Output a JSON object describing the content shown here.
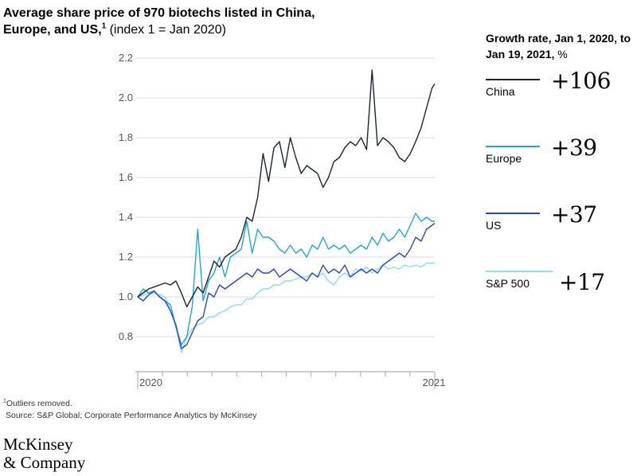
{
  "header": {
    "title_bold": "Average share price of 970 biotechs listed in China, Europe, and US,",
    "title_sup": "1",
    "title_rest": "(index 1 = Jan 2020)"
  },
  "legend": {
    "heading_bold": "Growth rate, Jan 1, 2020, to Jan 19, 2021,",
    "heading_unit": "%",
    "items": [
      {
        "name": "China",
        "value": "+106",
        "color": "#1c2433"
      },
      {
        "name": "Europe",
        "value": "+39",
        "color": "#1fa6d6"
      },
      {
        "name": "US",
        "value": "+37",
        "color": "#2a47c2"
      },
      {
        "name": "S&P 500",
        "value": "+17",
        "color": "#8fdcf5"
      }
    ]
  },
  "footnote": {
    "sup": "1",
    "outliers": "Outliers removed.",
    "source": "Source: S&P Global; Corporate Performance Analytics by McKinsey"
  },
  "brand": {
    "line1": "McKinsey",
    "line2": "& Company"
  },
  "chart_data": {
    "type": "line",
    "title": "Average share price of 970 biotechs listed in China, Europe, and US, (index 1 = Jan 2020)",
    "xlabel": "",
    "ylabel": "",
    "ylim": [
      0.7,
      2.2
    ],
    "yticks": [
      0.8,
      1.0,
      1.2,
      1.4,
      1.6,
      1.8,
      2.0,
      2.2
    ],
    "ytick_labels": [
      "0.8",
      "1.0",
      "1.2",
      "1.4",
      "1.6",
      "1.8",
      "2.0",
      "2.2"
    ],
    "x_range_weeks": [
      0,
      54.5
    ],
    "x_ticks": [
      {
        "week": 0,
        "label": "2020"
      },
      {
        "week": 54.5,
        "label": "2021"
      }
    ],
    "grid": true,
    "series": [
      {
        "name": "China",
        "color": "#1c2433",
        "x": [
          0,
          1,
          2,
          3,
          4,
          5,
          6,
          7,
          8,
          9,
          10,
          11,
          12,
          13,
          14,
          15,
          16,
          17,
          18,
          19,
          20,
          21,
          22,
          23,
          24,
          25,
          26,
          27,
          28,
          29,
          30,
          31,
          32,
          33,
          34,
          35,
          36,
          37,
          38,
          39,
          40,
          41,
          42,
          43,
          44,
          45,
          46,
          47,
          48,
          49,
          50,
          51,
          52,
          53,
          54,
          54.5
        ],
        "values": [
          1.0,
          1.02,
          1.04,
          1.05,
          1.06,
          1.07,
          1.06,
          1.08,
          1.02,
          0.95,
          1.0,
          1.05,
          1.02,
          1.1,
          1.18,
          1.15,
          1.2,
          1.22,
          1.24,
          1.3,
          1.4,
          1.38,
          1.5,
          1.72,
          1.58,
          1.75,
          1.78,
          1.65,
          1.8,
          1.7,
          1.62,
          1.66,
          1.64,
          1.62,
          1.55,
          1.6,
          1.68,
          1.7,
          1.75,
          1.78,
          1.76,
          1.8,
          1.74,
          2.14,
          1.76,
          1.8,
          1.78,
          1.75,
          1.7,
          1.68,
          1.72,
          1.78,
          1.85,
          1.95,
          2.05,
          2.07
        ]
      },
      {
        "name": "Europe",
        "color": "#1fa6d6",
        "x": [
          0,
          1,
          2,
          3,
          4,
          5,
          6,
          7,
          8,
          9,
          10,
          11,
          12,
          13,
          14,
          15,
          16,
          17,
          18,
          19,
          20,
          21,
          22,
          23,
          24,
          25,
          26,
          27,
          28,
          29,
          30,
          31,
          32,
          33,
          34,
          35,
          36,
          37,
          38,
          39,
          40,
          41,
          42,
          43,
          44,
          45,
          46,
          47,
          48,
          49,
          50,
          51,
          52,
          53,
          54,
          54.5
        ],
        "values": [
          1.0,
          1.04,
          1.02,
          1.03,
          1.0,
          0.98,
          0.96,
          0.85,
          0.76,
          0.8,
          0.95,
          1.34,
          0.98,
          1.08,
          1.12,
          1.2,
          1.1,
          1.2,
          1.22,
          1.24,
          1.38,
          1.22,
          1.34,
          1.3,
          1.3,
          1.28,
          1.24,
          1.22,
          1.26,
          1.22,
          1.24,
          1.2,
          1.26,
          1.24,
          1.3,
          1.24,
          1.26,
          1.24,
          1.26,
          1.22,
          1.24,
          1.26,
          1.24,
          1.3,
          1.26,
          1.32,
          1.28,
          1.3,
          1.34,
          1.3,
          1.36,
          1.42,
          1.38,
          1.4,
          1.38,
          1.38
        ]
      },
      {
        "name": "US",
        "color": "#2a47c2",
        "x": [
          0,
          1,
          2,
          3,
          4,
          5,
          6,
          7,
          8,
          9,
          10,
          11,
          12,
          13,
          14,
          15,
          16,
          17,
          18,
          19,
          20,
          21,
          22,
          23,
          24,
          25,
          26,
          27,
          28,
          29,
          30,
          31,
          32,
          33,
          34,
          35,
          36,
          37,
          38,
          39,
          40,
          41,
          42,
          43,
          44,
          45,
          46,
          47,
          48,
          49,
          50,
          51,
          52,
          53,
          54,
          54.5
        ],
        "values": [
          1.0,
          0.98,
          1.01,
          1.03,
          1.0,
          0.98,
          0.93,
          0.86,
          0.74,
          0.76,
          0.82,
          0.88,
          0.9,
          1.02,
          1.0,
          1.06,
          1.04,
          1.06,
          1.08,
          1.1,
          1.12,
          1.1,
          1.14,
          1.12,
          1.12,
          1.14,
          1.1,
          1.12,
          1.14,
          1.12,
          1.1,
          1.08,
          1.12,
          1.1,
          1.16,
          1.12,
          1.14,
          1.12,
          1.16,
          1.1,
          1.12,
          1.14,
          1.12,
          1.14,
          1.12,
          1.16,
          1.18,
          1.2,
          1.22,
          1.2,
          1.24,
          1.3,
          1.28,
          1.34,
          1.36,
          1.37
        ]
      },
      {
        "name": "S&P 500",
        "color": "#8fdcf5",
        "x": [
          0,
          1,
          2,
          3,
          4,
          5,
          6,
          7,
          8,
          9,
          10,
          11,
          12,
          13,
          14,
          15,
          16,
          17,
          18,
          19,
          20,
          21,
          22,
          23,
          24,
          25,
          26,
          27,
          28,
          29,
          30,
          31,
          32,
          33,
          34,
          35,
          36,
          37,
          38,
          39,
          40,
          41,
          42,
          43,
          44,
          45,
          46,
          47,
          48,
          49,
          50,
          51,
          52,
          53,
          54,
          54.5
        ],
        "values": [
          1.0,
          1.01,
          1.02,
          1.02,
          1.01,
          1.0,
          0.93,
          0.85,
          0.72,
          0.8,
          0.84,
          0.86,
          0.87,
          0.9,
          0.9,
          0.92,
          0.93,
          0.95,
          0.96,
          0.96,
          0.99,
          0.99,
          1.02,
          1.04,
          1.04,
          1.06,
          1.06,
          1.08,
          1.08,
          1.09,
          1.1,
          1.1,
          1.12,
          1.1,
          1.12,
          1.08,
          1.06,
          1.1,
          1.12,
          1.1,
          1.14,
          1.13,
          1.15,
          1.12,
          1.14,
          1.16,
          1.14,
          1.15,
          1.14,
          1.16,
          1.15,
          1.16,
          1.15,
          1.17,
          1.17,
          1.17
        ]
      }
    ]
  }
}
